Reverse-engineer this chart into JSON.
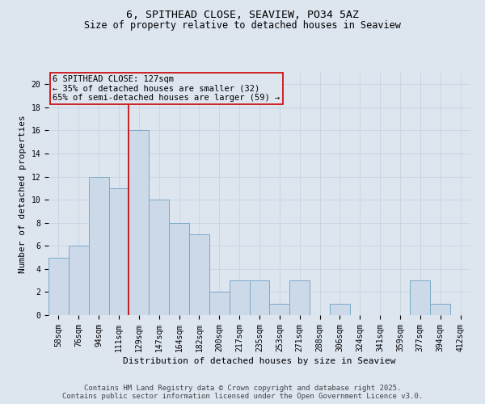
{
  "title_line1": "6, SPITHEAD CLOSE, SEAVIEW, PO34 5AZ",
  "title_line2": "Size of property relative to detached houses in Seaview",
  "xlabel": "Distribution of detached houses by size in Seaview",
  "ylabel": "Number of detached properties",
  "bins": [
    "58sqm",
    "76sqm",
    "94sqm",
    "111sqm",
    "129sqm",
    "147sqm",
    "164sqm",
    "182sqm",
    "200sqm",
    "217sqm",
    "235sqm",
    "253sqm",
    "271sqm",
    "288sqm",
    "306sqm",
    "324sqm",
    "341sqm",
    "359sqm",
    "377sqm",
    "394sqm",
    "412sqm"
  ],
  "values": [
    5,
    6,
    12,
    11,
    16,
    10,
    8,
    7,
    2,
    3,
    3,
    1,
    3,
    0,
    1,
    0,
    0,
    0,
    3,
    1,
    0
  ],
  "bar_color": "#ccd9e8",
  "bar_edge_color": "#7aaac8",
  "vline_color": "#cc0000",
  "vline_pos": 3.5,
  "annotation_box_text": "6 SPITHEAD CLOSE: 127sqm\n← 35% of detached houses are smaller (32)\n65% of semi-detached houses are larger (59) →",
  "annotation_box_color": "#cc0000",
  "ylim": [
    0,
    21
  ],
  "yticks": [
    0,
    2,
    4,
    6,
    8,
    10,
    12,
    14,
    16,
    18,
    20
  ],
  "grid_color": "#c8d4e0",
  "background_color": "#dde5ef",
  "footer_line1": "Contains HM Land Registry data © Crown copyright and database right 2025.",
  "footer_line2": "Contains public sector information licensed under the Open Government Licence v3.0.",
  "title_fontsize": 9.5,
  "subtitle_fontsize": 8.5,
  "axis_label_fontsize": 8,
  "tick_fontsize": 7,
  "annotation_fontsize": 7.5,
  "footer_fontsize": 6.5
}
